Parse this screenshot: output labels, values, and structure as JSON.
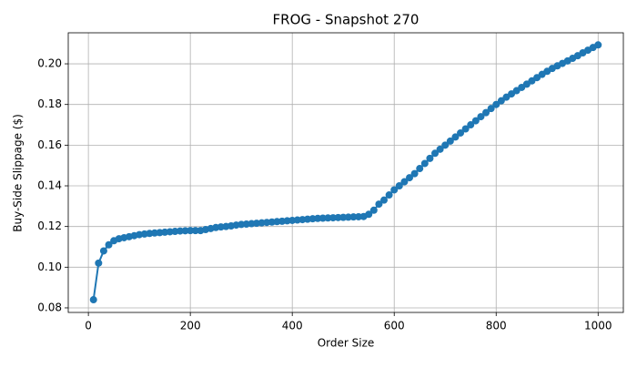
{
  "chart_data": {
    "type": "line",
    "title": "FROG - Snapshot 270",
    "x_label": "Order Size",
    "y_label": "Buy-Side Slippage ($)",
    "x": [
      10,
      20,
      30,
      40,
      50,
      60,
      70,
      80,
      90,
      100,
      110,
      120,
      130,
      140,
      150,
      160,
      170,
      180,
      190,
      200,
      210,
      220,
      230,
      240,
      250,
      260,
      270,
      280,
      290,
      300,
      310,
      320,
      330,
      340,
      350,
      360,
      370,
      380,
      390,
      400,
      410,
      420,
      430,
      440,
      450,
      460,
      470,
      480,
      490,
      500,
      510,
      520,
      530,
      540,
      550,
      560,
      570,
      580,
      590,
      600,
      610,
      620,
      630,
      640,
      650,
      660,
      670,
      680,
      690,
      700,
      710,
      720,
      730,
      740,
      750,
      760,
      770,
      780,
      790,
      800,
      810,
      820,
      830,
      840,
      850,
      860,
      870,
      880,
      890,
      900,
      910,
      920,
      930,
      940,
      950,
      960,
      970,
      980,
      990,
      1000
    ],
    "series": [
      {
        "name": "Buy-Side Slippage",
        "color": "#1f77b4",
        "values": [
          0.084,
          0.102,
          0.108,
          0.111,
          0.113,
          0.114,
          0.1145,
          0.115,
          0.1155,
          0.116,
          0.1163,
          0.1166,
          0.1168,
          0.117,
          0.1172,
          0.1174,
          0.1176,
          0.1178,
          0.1179,
          0.118,
          0.118,
          0.118,
          0.1185,
          0.119,
          0.1195,
          0.1198,
          0.12,
          0.1203,
          0.1207,
          0.121,
          0.1212,
          0.1214,
          0.1216,
          0.1218,
          0.122,
          0.1222,
          0.1224,
          0.1226,
          0.1228,
          0.123,
          0.1232,
          0.1234,
          0.1236,
          0.1238,
          0.124,
          0.1241,
          0.1242,
          0.1243,
          0.1244,
          0.1245,
          0.1246,
          0.1247,
          0.1248,
          0.1249,
          0.126,
          0.128,
          0.131,
          0.133,
          0.1355,
          0.138,
          0.14,
          0.142,
          0.144,
          0.146,
          0.1485,
          0.151,
          0.1535,
          0.156,
          0.158,
          0.16,
          0.162,
          0.164,
          0.166,
          0.168,
          0.17,
          0.172,
          0.174,
          0.176,
          0.178,
          0.18,
          0.1818,
          0.1836,
          0.1852,
          0.1868,
          0.1884,
          0.19,
          0.1916,
          0.1932,
          0.1948,
          0.1963,
          0.1977,
          0.199,
          0.2002,
          0.2014,
          0.2027,
          0.204,
          0.2054,
          0.2067,
          0.208,
          0.2093
        ]
      }
    ],
    "xlim": [
      -39.5,
      1049.5
    ],
    "xticks": [
      0,
      200,
      400,
      600,
      800,
      1000
    ],
    "ylim": [
      0.07775,
      0.21525
    ],
    "yticks": [
      0.08,
      {
        "value": 0.1,
        "label": "0.10"
      },
      0.12,
      0.14,
      0.16,
      0.18,
      {
        "value": 0.2,
        "label": "0.20"
      }
    ],
    "grid": true
  }
}
